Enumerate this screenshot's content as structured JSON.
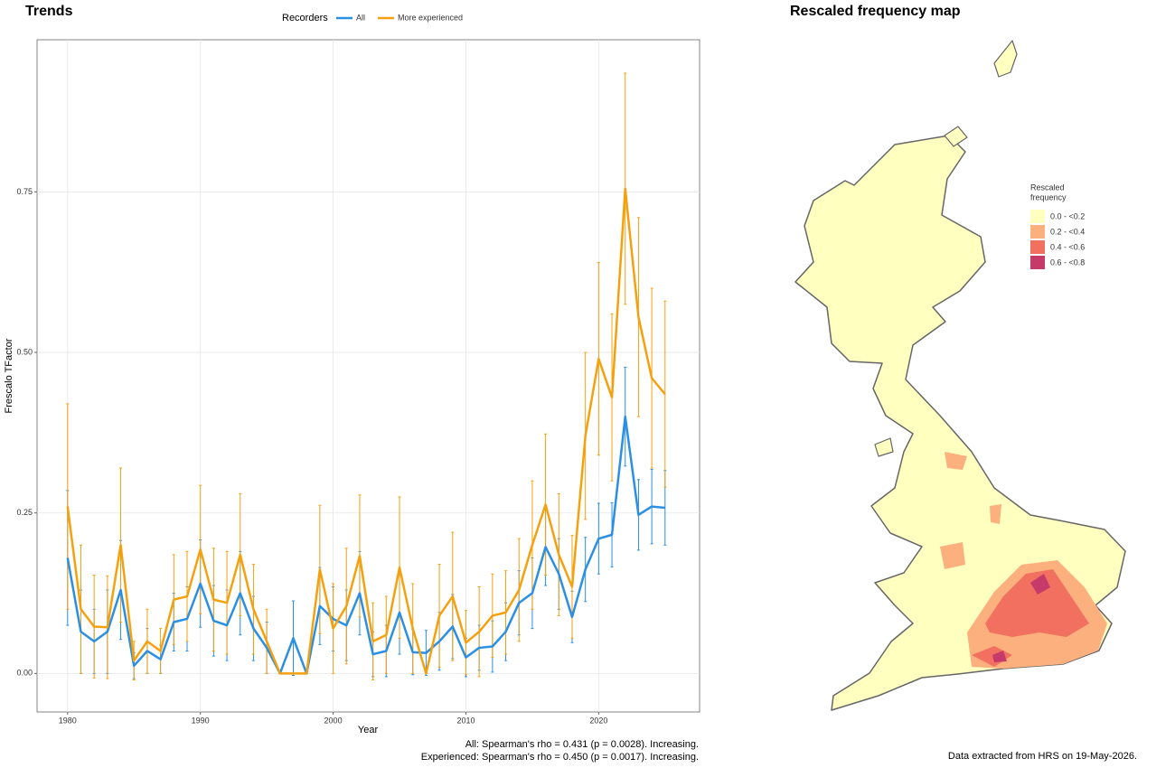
{
  "chart_data": [
    {
      "type": "line",
      "title": "Trends",
      "x_label": "Year",
      "y_label": "Frescalo TFactor",
      "legend_title": "Recorders",
      "legend_position": "top",
      "x": [
        1980,
        1981,
        1982,
        1983,
        1984,
        1985,
        1986,
        1987,
        1988,
        1989,
        1990,
        1991,
        1992,
        1993,
        1994,
        1995,
        1996,
        1997,
        1998,
        1999,
        2000,
        2001,
        2002,
        2003,
        2004,
        2005,
        2006,
        2007,
        2008,
        2009,
        2010,
        2011,
        2012,
        2013,
        2014,
        2015,
        2016,
        2017,
        2018,
        2019,
        2020,
        2021,
        2022,
        2023,
        2024,
        2025
      ],
      "series": [
        {
          "name": "All",
          "color": "#2b8fe3",
          "values": [
            0.18,
            0.065,
            0.05,
            0.065,
            0.13,
            0.012,
            0.035,
            0.022,
            0.08,
            0.085,
            0.14,
            0.082,
            0.075,
            0.125,
            0.07,
            0.04,
            0,
            0.055,
            0,
            0.105,
            0.085,
            0.075,
            0.125,
            0.03,
            0.035,
            0.095,
            0.033,
            0.032,
            0.05,
            0.073,
            0.025,
            0.04,
            0.042,
            0.065,
            0.11,
            0.125,
            0.197,
            0.155,
            0.088,
            0.162,
            0.21,
            0.216,
            0.4,
            0.247,
            0.26,
            0.258
          ],
          "errors": [
            0.105,
            0.065,
            0.05,
            0.065,
            0.077,
            0.02,
            0.035,
            0.022,
            0.045,
            0.05,
            0.068,
            0.055,
            0.055,
            0.065,
            0.05,
            0.04,
            0,
            0.058,
            0,
            0.06,
            0.05,
            0.055,
            0.065,
            0.035,
            0.04,
            0.065,
            0.035,
            0.035,
            0.045,
            0.05,
            0.03,
            0.035,
            0.04,
            0.045,
            0.05,
            0.055,
            0.06,
            0.055,
            0.04,
            0.05,
            0.055,
            0.05,
            0.077,
            0.055,
            0.058,
            0.058
          ]
        },
        {
          "name": "More experienced",
          "color": "#f5a10f",
          "values": [
            0.26,
            0.1,
            0.073,
            0.072,
            0.2,
            0.02,
            0.05,
            0.035,
            0.115,
            0.12,
            0.193,
            0.115,
            0.11,
            0.185,
            0.1,
            0.05,
            0,
            0,
            0,
            0.162,
            0.07,
            0.105,
            0.183,
            0.05,
            0.06,
            0.165,
            0.07,
            0,
            0.09,
            0.12,
            0.048,
            0.065,
            0.09,
            0.095,
            0.13,
            0.2,
            0.263,
            0.185,
            0.135,
            0.37,
            0.49,
            0.43,
            0.755,
            0.555,
            0.46,
            0.435
          ],
          "errors": [
            0.16,
            0.1,
            0.08,
            0.08,
            0.12,
            0.03,
            0.05,
            0.035,
            0.07,
            0.07,
            0.1,
            0.08,
            0.08,
            0.095,
            0.07,
            0.05,
            0,
            0,
            0,
            0.1,
            0.07,
            0.09,
            0.095,
            0.06,
            0.06,
            0.11,
            0.07,
            0,
            0.08,
            0.1,
            0.05,
            0.07,
            0.065,
            0.065,
            0.08,
            0.1,
            0.11,
            0.095,
            0.08,
            0.13,
            0.15,
            0.13,
            0.18,
            0.155,
            0.14,
            0.145
          ]
        }
      ],
      "xlim": [
        1977.7,
        2027.6
      ],
      "xticks": [
        1980,
        1990,
        2000,
        2010,
        2020
      ],
      "ylim": [
        -0.06,
        0.987
      ],
      "yticks": [
        {
          "value": 0,
          "label": "0.00"
        },
        {
          "value": 0.25,
          "label": "0.25"
        },
        {
          "value": 0.5,
          "label": "0.50"
        },
        {
          "value": 0.75,
          "label": "0.75"
        }
      ],
      "grid": true,
      "notes": [
        "All: Spearman's rho = 0.431 (p = 0.0028). Increasing.",
        "Experienced: Spearman's rho = 0.450 (p = 0.0017). Increasing."
      ]
    },
    {
      "type": "map",
      "title": "Rescaled frequency map",
      "legend_title": [
        "Rescaled",
        "frequency"
      ],
      "categories": [
        "0.0 - <0.2",
        "0.2 - <0.4",
        "0.4 - <0.6",
        "0.6 - <0.8"
      ],
      "colors": [
        "#ffffc0",
        "#fcb07e",
        "#f2705f",
        "#c63a6a"
      ],
      "caption": "Data extracted from HRS on 19-May-2026."
    }
  ]
}
